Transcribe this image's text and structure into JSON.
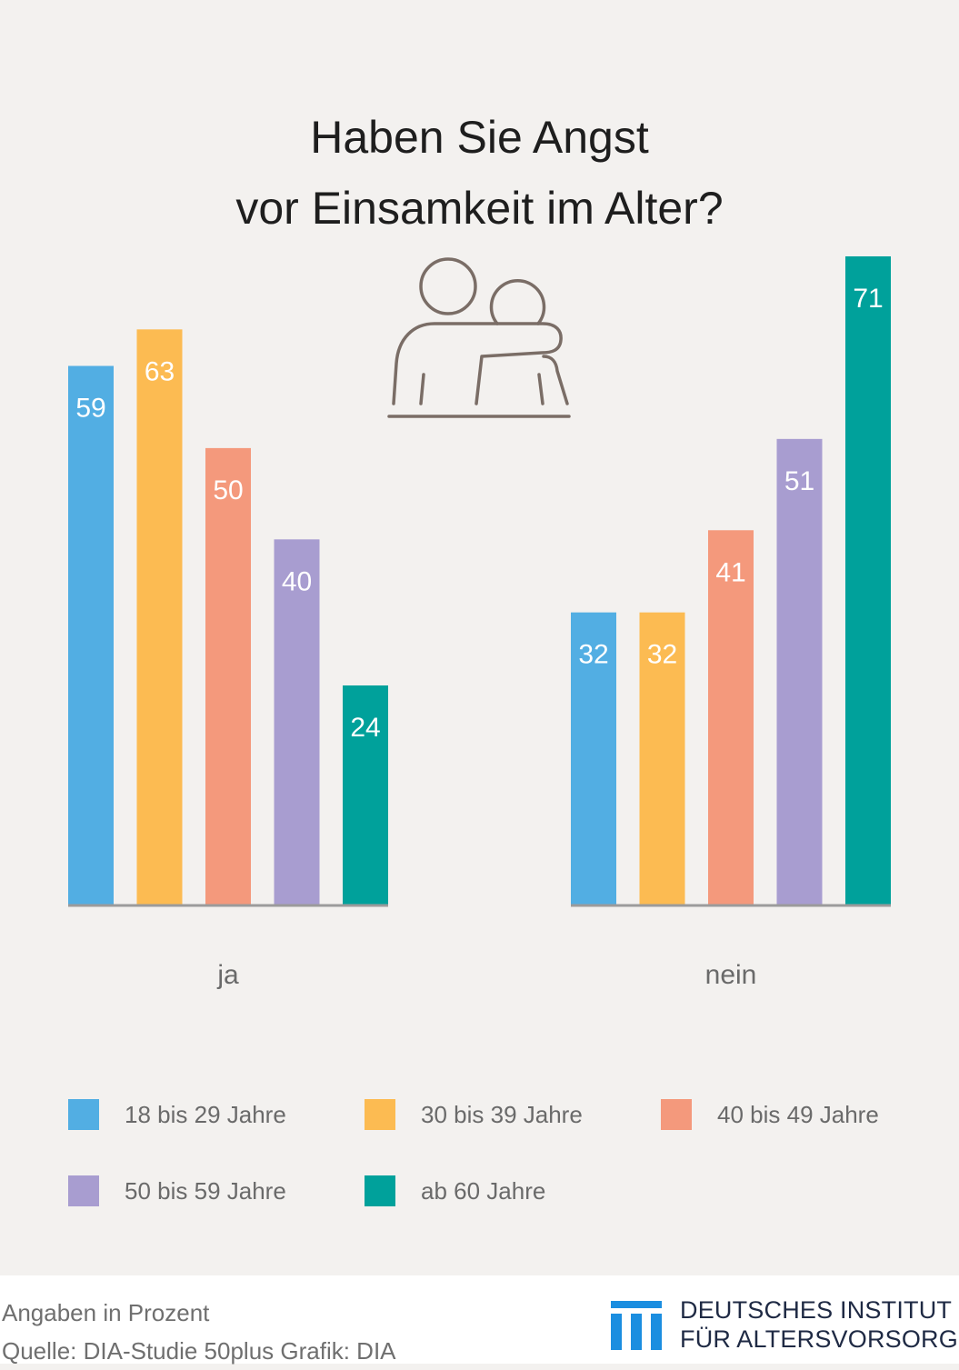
{
  "header": {
    "title_line1": "Haben Sie Angst",
    "title_line2": "vor Einsamkeit im Alter?"
  },
  "chart_data": {
    "type": "bar",
    "categories": [
      "ja",
      "nein"
    ],
    "series": [
      {
        "name": "18 bis 29 Jahre",
        "color": "#52aee3",
        "values": [
          59,
          32
        ]
      },
      {
        "name": "30 bis 39 Jahre",
        "color": "#fcbb52",
        "values": [
          63,
          32
        ]
      },
      {
        "name": "40 bis 49 Jahre",
        "color": "#f4997c",
        "values": [
          50,
          41
        ]
      },
      {
        "name": "50 bis 59 Jahre",
        "color": "#a89dd0",
        "values": [
          40,
          51
        ]
      },
      {
        "name": "ab 60 Jahre",
        "color": "#00a19b",
        "values": [
          24,
          71
        ]
      }
    ],
    "ylim": [
      0,
      71
    ],
    "grid": false,
    "legend_position": "bottom",
    "data_labels": true,
    "icon": "two-people-embracing-icon"
  },
  "footer": {
    "note": "Angaben in Prozent",
    "source": "Quelle: DIA-Studie 50plus  Grafik: DIA",
    "logo_line1": "DEUTSCHES INSTITUT",
    "logo_line2": "FÜR ALTERSVORSORGE",
    "logo_color": "#1b8ee0"
  }
}
